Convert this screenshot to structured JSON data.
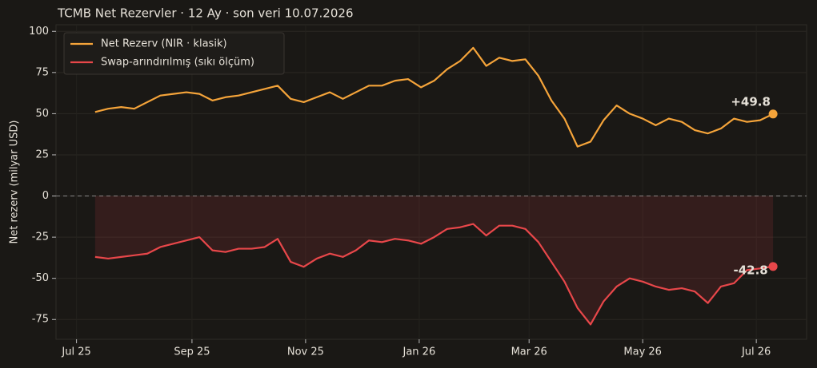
{
  "chart_data": {
    "type": "line",
    "title": "TCMB Net Rezervler · 12 Ay · son veri 10.07.2026",
    "y_label": "Net rezerv (milyar USD)",
    "x": [
      "2025-07-11",
      "2025-07-18",
      "2025-07-25",
      "2025-08-01",
      "2025-08-08",
      "2025-08-15",
      "2025-08-22",
      "2025-08-29",
      "2025-09-05",
      "2025-09-12",
      "2025-09-19",
      "2025-09-26",
      "2025-10-03",
      "2025-10-10",
      "2025-10-17",
      "2025-10-24",
      "2025-10-31",
      "2025-11-07",
      "2025-11-14",
      "2025-11-21",
      "2025-11-28",
      "2025-12-05",
      "2025-12-12",
      "2025-12-19",
      "2025-12-26",
      "2026-01-02",
      "2026-01-09",
      "2026-01-16",
      "2026-01-23",
      "2026-01-30",
      "2026-02-06",
      "2026-02-13",
      "2026-02-20",
      "2026-02-27",
      "2026-03-06",
      "2026-03-13",
      "2026-03-20",
      "2026-03-27",
      "2026-04-03",
      "2026-04-10",
      "2026-04-17",
      "2026-04-24",
      "2026-05-01",
      "2026-05-08",
      "2026-05-15",
      "2026-05-22",
      "2026-05-29",
      "2026-06-05",
      "2026-06-12",
      "2026-06-19",
      "2026-06-26",
      "2026-07-03",
      "2026-07-10"
    ],
    "series": [
      {
        "name": "Net Rezerv (NIR · klasik)",
        "color": "#f5a43a",
        "end_label": "+49.8",
        "values": [
          51,
          53,
          54,
          53,
          57,
          61,
          62,
          63,
          62,
          58,
          60,
          61,
          63,
          65,
          67,
          59,
          57,
          60,
          63,
          59,
          63,
          67,
          67,
          70,
          71,
          66,
          70,
          77,
          82,
          90,
          79,
          84,
          82,
          83,
          73,
          58,
          47,
          30,
          33,
          46,
          55,
          50,
          47,
          43,
          47,
          45,
          40,
          38,
          41,
          47,
          45,
          46,
          49.8
        ]
      },
      {
        "name": "Swap-arındırılmış (sıkı ölçüm)",
        "color": "#e8474a",
        "end_label": "-42.8",
        "fill": true,
        "values": [
          -37,
          -38,
          -37,
          -36,
          -35,
          -31,
          -29,
          -27,
          -25,
          -33,
          -34,
          -32,
          -32,
          -31,
          -26,
          -40,
          -43,
          -38,
          -35,
          -37,
          -33,
          -27,
          -28,
          -26,
          -27,
          -29,
          -25,
          -20,
          -19,
          -17,
          -24,
          -18,
          -18,
          -20,
          -28,
          -40,
          -52,
          -68,
          -78,
          -64,
          -55,
          -50,
          -52,
          -55,
          -57,
          -56,
          -58,
          -65,
          -55,
          -53,
          -45,
          -44,
          -42.8
        ]
      }
    ],
    "xlim": [
      "2025-06-20",
      "2026-07-28"
    ],
    "xticks": [
      {
        "value": "2025-07-01",
        "label": "Jul 25"
      },
      {
        "value": "2025-09-01",
        "label": "Sep 25"
      },
      {
        "value": "2025-11-01",
        "label": "Nov 25"
      },
      {
        "value": "2026-01-01",
        "label": "Jan 26"
      },
      {
        "value": "2026-03-01",
        "label": "Mar 26"
      },
      {
        "value": "2026-05-01",
        "label": "May 26"
      },
      {
        "value": "2026-07-01",
        "label": "Jul 26"
      }
    ],
    "ylim": [
      -87,
      104
    ],
    "yticks": [
      -75,
      -50,
      -25,
      0,
      25,
      50,
      75,
      100
    ],
    "grid": true,
    "legend": "upper-left",
    "zero_line": true
  }
}
